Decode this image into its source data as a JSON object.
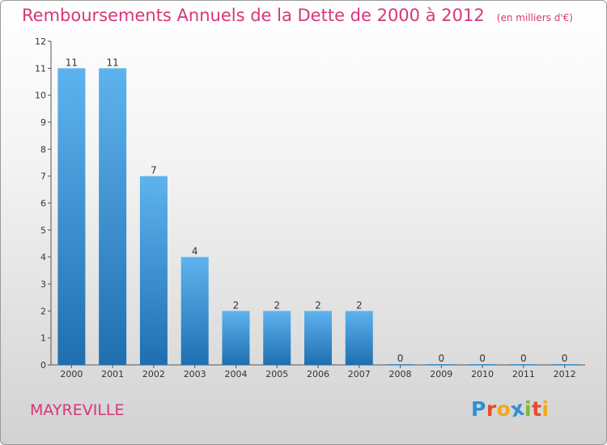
{
  "title": "Remboursements Annuels de la Dette de 2000 à 2012",
  "unit_note": "(en milliers d'€)",
  "town": "MAYREVILLE",
  "logo": {
    "text": "Proxiti",
    "letters": [
      {
        "char": "P",
        "color": "#2f8fd8"
      },
      {
        "char": "r",
        "color": "#e94b2a"
      },
      {
        "char": "o",
        "color": "#f2a81d"
      },
      {
        "char": "x",
        "color": "#2f8fd8"
      },
      {
        "char": "i",
        "color": "#7cbb2b"
      },
      {
        "char": "t",
        "color": "#e94b2a"
      },
      {
        "char": "i",
        "color": "#f2a81d"
      }
    ]
  },
  "colors": {
    "title": "#d7367a",
    "bar_light": "#5eb3ee",
    "bar_dark": "#1f6fb0"
  },
  "chart_data": {
    "type": "bar",
    "title": "Remboursements Annuels de la Dette de 2000 à 2012",
    "xlabel": "",
    "ylabel": "",
    "categories": [
      "2000",
      "2001",
      "2002",
      "2003",
      "2004",
      "2005",
      "2006",
      "2007",
      "2008",
      "2009",
      "2010",
      "2011",
      "2012"
    ],
    "values": [
      11,
      11,
      7,
      4,
      2,
      2,
      2,
      2,
      0,
      0,
      0,
      0,
      0
    ],
    "ylim": [
      0,
      12
    ],
    "yticks": [
      0,
      1,
      2,
      3,
      4,
      5,
      6,
      7,
      8,
      9,
      10,
      11,
      12
    ],
    "grid": false,
    "legend": "none"
  }
}
